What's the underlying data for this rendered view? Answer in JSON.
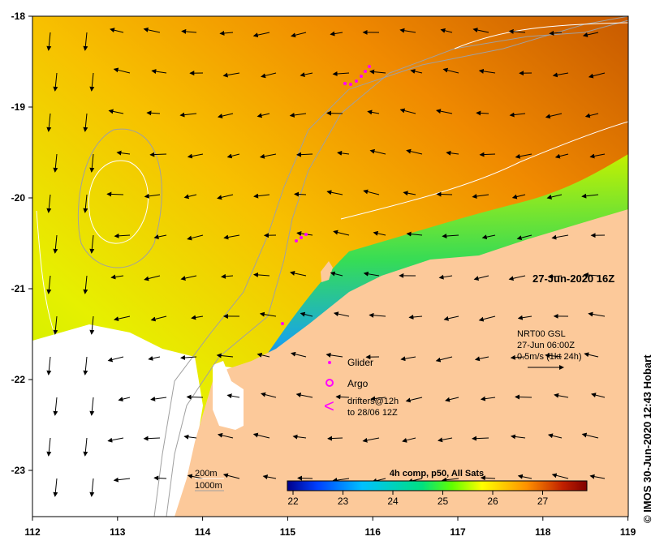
{
  "map": {
    "date_label": "27-Jun-2020 16Z",
    "credit": "© IMOS 30-Jun-2020 12:43 Hobart",
    "lon_ticks": [
      "112",
      "113",
      "114",
      "115",
      "116",
      "117",
      "118",
      "119"
    ],
    "lat_ticks": [
      "-18",
      "-19",
      "-20",
      "-21",
      "-22",
      "-23"
    ],
    "current_info": {
      "line1": "NRT00 GSL",
      "line2": "27-Jun 06:00Z",
      "line3": "0.5m/s (1kt 24h)"
    },
    "legend": {
      "glider": "Glider",
      "argo": "Argo",
      "drifters_line1": "drifters@12h",
      "drifters_line2": "to 28/06 12Z",
      "drifters_symbol": "<"
    },
    "isobaths": {
      "shallow": "200m",
      "deep": "1000m"
    },
    "colorbar": {
      "title": "4h comp, p50, All Sats",
      "ticks": [
        "22",
        "23",
        "24",
        "25",
        "26",
        "27"
      ],
      "colors": [
        "#00008b",
        "#0040ff",
        "#00c0ff",
        "#00e080",
        "#60ff00",
        "#c8ff00",
        "#ffff00",
        "#ffc800",
        "#ff9000",
        "#e05000",
        "#b01800",
        "#800000"
      ]
    },
    "colors": {
      "land": "#fcc99a",
      "marker": "#ff00ff",
      "contour_grey": "#a0a0a0",
      "contour_white": "#ffffff"
    }
  }
}
